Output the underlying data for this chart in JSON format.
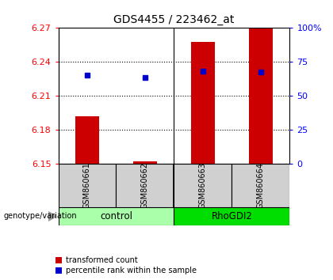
{
  "title": "GDS4455 / 223462_at",
  "samples": [
    "GSM860661",
    "GSM860662",
    "GSM860663",
    "GSM860664"
  ],
  "group_labels": [
    "control",
    "RhoGDI2"
  ],
  "group_colors": [
    "#aaffaa",
    "#00dd00"
  ],
  "bar_values": [
    6.192,
    6.152,
    6.258,
    6.27
  ],
  "blue_dot_values": [
    6.228,
    6.226,
    6.232,
    6.231
  ],
  "ymin": 6.15,
  "ymax": 6.27,
  "yticks_left": [
    6.15,
    6.18,
    6.21,
    6.24,
    6.27
  ],
  "yticks_right": [
    0,
    25,
    50,
    75,
    100
  ],
  "bar_color": "#cc0000",
  "dot_color": "#0000cc",
  "background_color": "#ffffff",
  "label_transformed": "transformed count",
  "label_percentile": "percentile rank within the sample",
  "genotype_label": "genotype/variation"
}
